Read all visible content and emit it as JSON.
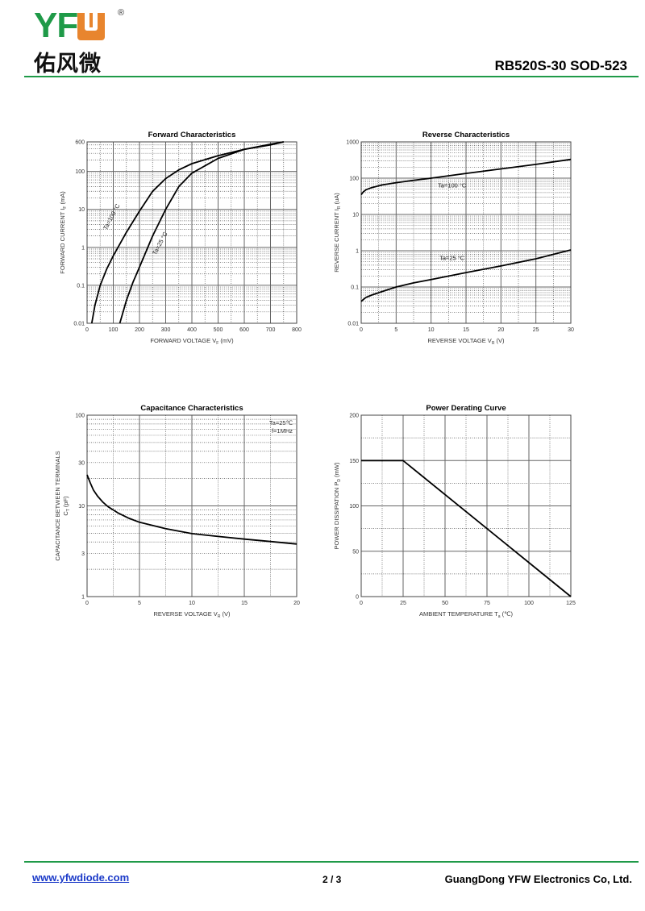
{
  "header": {
    "logo_text": "YFW",
    "logo_cn": "佑风微",
    "logo_reg": "®",
    "title": "RB520S-30  SOD-523"
  },
  "footer": {
    "website": "www.yfwdiode.com",
    "page": "2 / 3",
    "company": "GuangDong YFW Electronics Co, Ltd."
  },
  "colors": {
    "brand_green": "#1f9a48",
    "brand_orange": "#e8852e",
    "link": "#1a39c8"
  },
  "chart_data": [
    {
      "type": "line",
      "title": "Forward    Characteristics",
      "xlabel": "FORWARD VOLTAGE",
      "xsym": "V",
      "xsub": "F",
      "xunit": "(mV)",
      "ylabel": "FORWARD CURRENT",
      "ysym": "I",
      "ysub": "F",
      "yunit": "(mA)",
      "xlim": [
        0,
        800
      ],
      "ylim": [
        0.01,
        600
      ],
      "yscale": "log",
      "xticks": [
        0,
        100,
        200,
        300,
        400,
        500,
        600,
        700,
        800
      ],
      "yticks": [
        0.01,
        0.1,
        1,
        10,
        100,
        600
      ],
      "ytick_labels": [
        "0.01",
        "0.1",
        "1",
        "10",
        "100",
        "600"
      ],
      "grid": true,
      "series": [
        {
          "name": "Ta=100 °C",
          "x": [
            18,
            30,
            50,
            75,
            100,
            150,
            200,
            250,
            300,
            350,
            400,
            500,
            600,
            700,
            750
          ],
          "y": [
            0.01,
            0.03,
            0.1,
            0.27,
            0.6,
            2.5,
            9,
            30,
            65,
            110,
            160,
            260,
            380,
            500,
            600
          ],
          "label_at": [
            100,
            6
          ],
          "label_rot": -62
        },
        {
          "name": "Ta=25 °C",
          "x": [
            125,
            150,
            175,
            200,
            250,
            300,
            350,
            400,
            500,
            600,
            700,
            750
          ],
          "y": [
            0.01,
            0.04,
            0.12,
            0.3,
            2,
            10,
            40,
            90,
            220,
            380,
            520,
            600
          ],
          "label_at": [
            285,
            1.2
          ],
          "label_rot": -62
        }
      ]
    },
    {
      "type": "line",
      "title": "Reverse    Characteristics",
      "xlabel": "REVERSE VOLTAGE",
      "xsym": "V",
      "xsub": "R",
      "xunit": "(V)",
      "ylabel": "REVERSE CURRENT",
      "ysym": "I",
      "ysub": "R",
      "yunit": "(uA)",
      "xlim": [
        0,
        30
      ],
      "ylim": [
        0.01,
        1000
      ],
      "yscale": "log",
      "xticks": [
        0,
        5,
        10,
        15,
        20,
        25,
        30
      ],
      "yticks": [
        0.01,
        0.1,
        1,
        10,
        100,
        1000
      ],
      "ytick_labels": [
        "0.01",
        "0.1",
        "1",
        "10",
        "100",
        "1000"
      ],
      "grid": true,
      "series": [
        {
          "name": "Ta=100 °C",
          "x": [
            0,
            0.3,
            0.7,
            1.5,
            3,
            5,
            7.5,
            10,
            15,
            20,
            25,
            30
          ],
          "y": [
            35,
            42,
            48,
            55,
            65,
            75,
            87,
            100,
            135,
            180,
            240,
            330
          ],
          "label_at": [
            13,
            55
          ],
          "label_rot": 0
        },
        {
          "name": "Ta=25 °C",
          "x": [
            0,
            0.3,
            0.7,
            1.5,
            3,
            5,
            7.5,
            10,
            15,
            20,
            25,
            30
          ],
          "y": [
            0.04,
            0.045,
            0.052,
            0.06,
            0.075,
            0.1,
            0.13,
            0.16,
            0.25,
            0.38,
            0.6,
            1.05
          ],
          "label_at": [
            13,
            0.55
          ],
          "label_rot": 0
        }
      ]
    },
    {
      "type": "line",
      "title": "Capacitance Characteristics",
      "xlabel": "REVERSE VOLTAGE",
      "xsym": "V",
      "xsub": "R",
      "xunit": "(V)",
      "ylabel": "CAPACITANCE BETWEEN TERMINALS",
      "ysym": "C",
      "ysub": "T",
      "yunit": "(pF)",
      "xlim": [
        0,
        20
      ],
      "ylim": [
        1,
        100
      ],
      "yscale": "log",
      "xticks": [
        0,
        5,
        10,
        15,
        20
      ],
      "yticks": [
        1,
        3,
        10,
        30,
        100
      ],
      "ytick_labels": [
        "1",
        "3",
        "10",
        "30",
        "100"
      ],
      "grid": true,
      "annotations": [
        "Ta=25℃",
        "f=1MHz"
      ],
      "series": [
        {
          "name": "Ct",
          "x": [
            0,
            0.3,
            0.6,
            1,
            1.5,
            2,
            3,
            4,
            5,
            7.5,
            10,
            12.5,
            15,
            17.5,
            20
          ],
          "y": [
            22,
            18,
            15,
            12.8,
            11,
            9.8,
            8.3,
            7.3,
            6.6,
            5.6,
            4.95,
            4.6,
            4.3,
            4.05,
            3.8
          ]
        }
      ]
    },
    {
      "type": "line",
      "title": "Power Derating Curve",
      "xlabel": "AMBIENT TEMPERATURE",
      "xsym": "T",
      "xsub": "a",
      "xunit": "(℃)",
      "ylabel": "POWER DISSIPATION",
      "ysym": "P",
      "ysub": "D",
      "yunit": "(mW)",
      "xlim": [
        0,
        125
      ],
      "ylim": [
        0,
        200
      ],
      "yscale": "linear",
      "xticks": [
        0,
        25,
        50,
        75,
        100,
        125
      ],
      "yticks": [
        0,
        50,
        100,
        150,
        200
      ],
      "ytick_labels": [
        "0",
        "50",
        "100",
        "150",
        "200"
      ],
      "grid": true,
      "series": [
        {
          "name": "Pd",
          "x": [
            0,
            25,
            125
          ],
          "y": [
            150,
            150,
            0
          ]
        }
      ]
    }
  ]
}
